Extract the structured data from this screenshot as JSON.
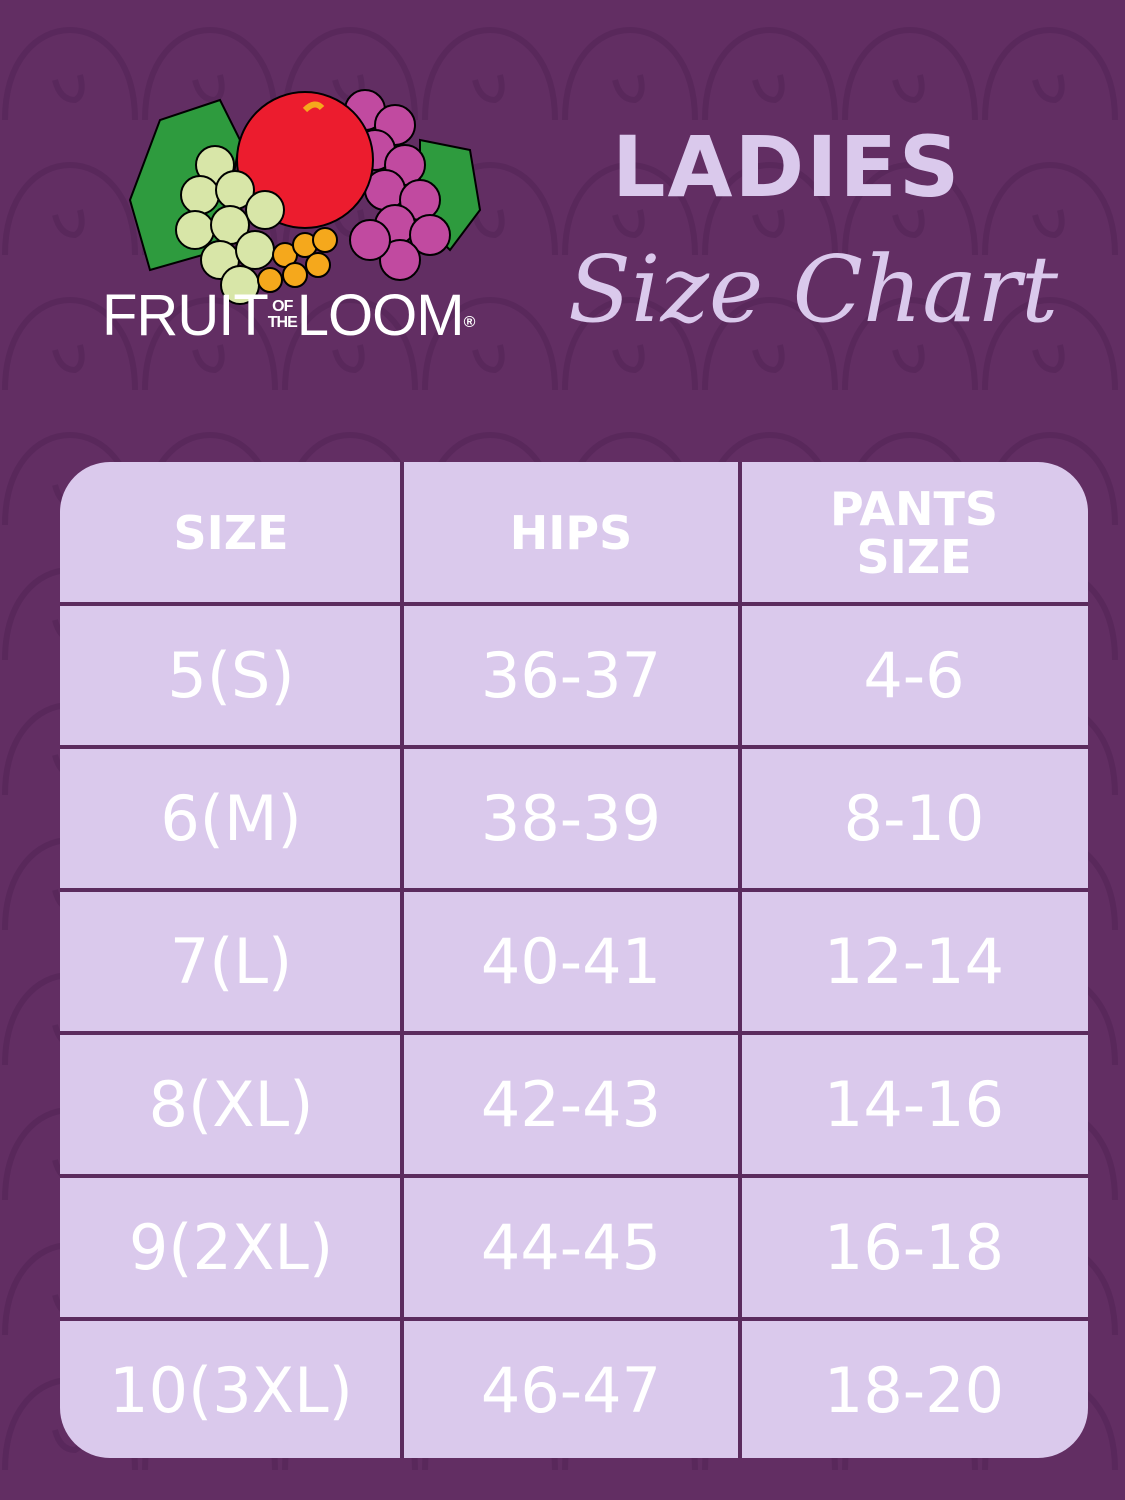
{
  "brand": {
    "name_part1": "FRUIT",
    "name_of": "OF",
    "name_the": "THE",
    "name_part2": "LOOM",
    "registered": "®"
  },
  "title": {
    "line1": "LADIES",
    "line2": "Size Chart"
  },
  "table": {
    "headers": [
      "SIZE",
      "HIPS",
      "PANTS SIZE"
    ],
    "rows": [
      [
        "5(S)",
        "36-37",
        "4-6"
      ],
      [
        "6(M)",
        "38-39",
        "8-10"
      ],
      [
        "7(L)",
        "40-41",
        "12-14"
      ],
      [
        "8(XL)",
        "42-43",
        "14-16"
      ],
      [
        "9(2XL)",
        "44-45",
        "16-18"
      ],
      [
        "10(3XL)",
        "46-47",
        "18-20"
      ]
    ]
  },
  "colors": {
    "background": "#622e63",
    "table": "#dac9ec",
    "lines": "#5b2b5e",
    "title": "#dac9ec",
    "text": "#ffffff"
  }
}
